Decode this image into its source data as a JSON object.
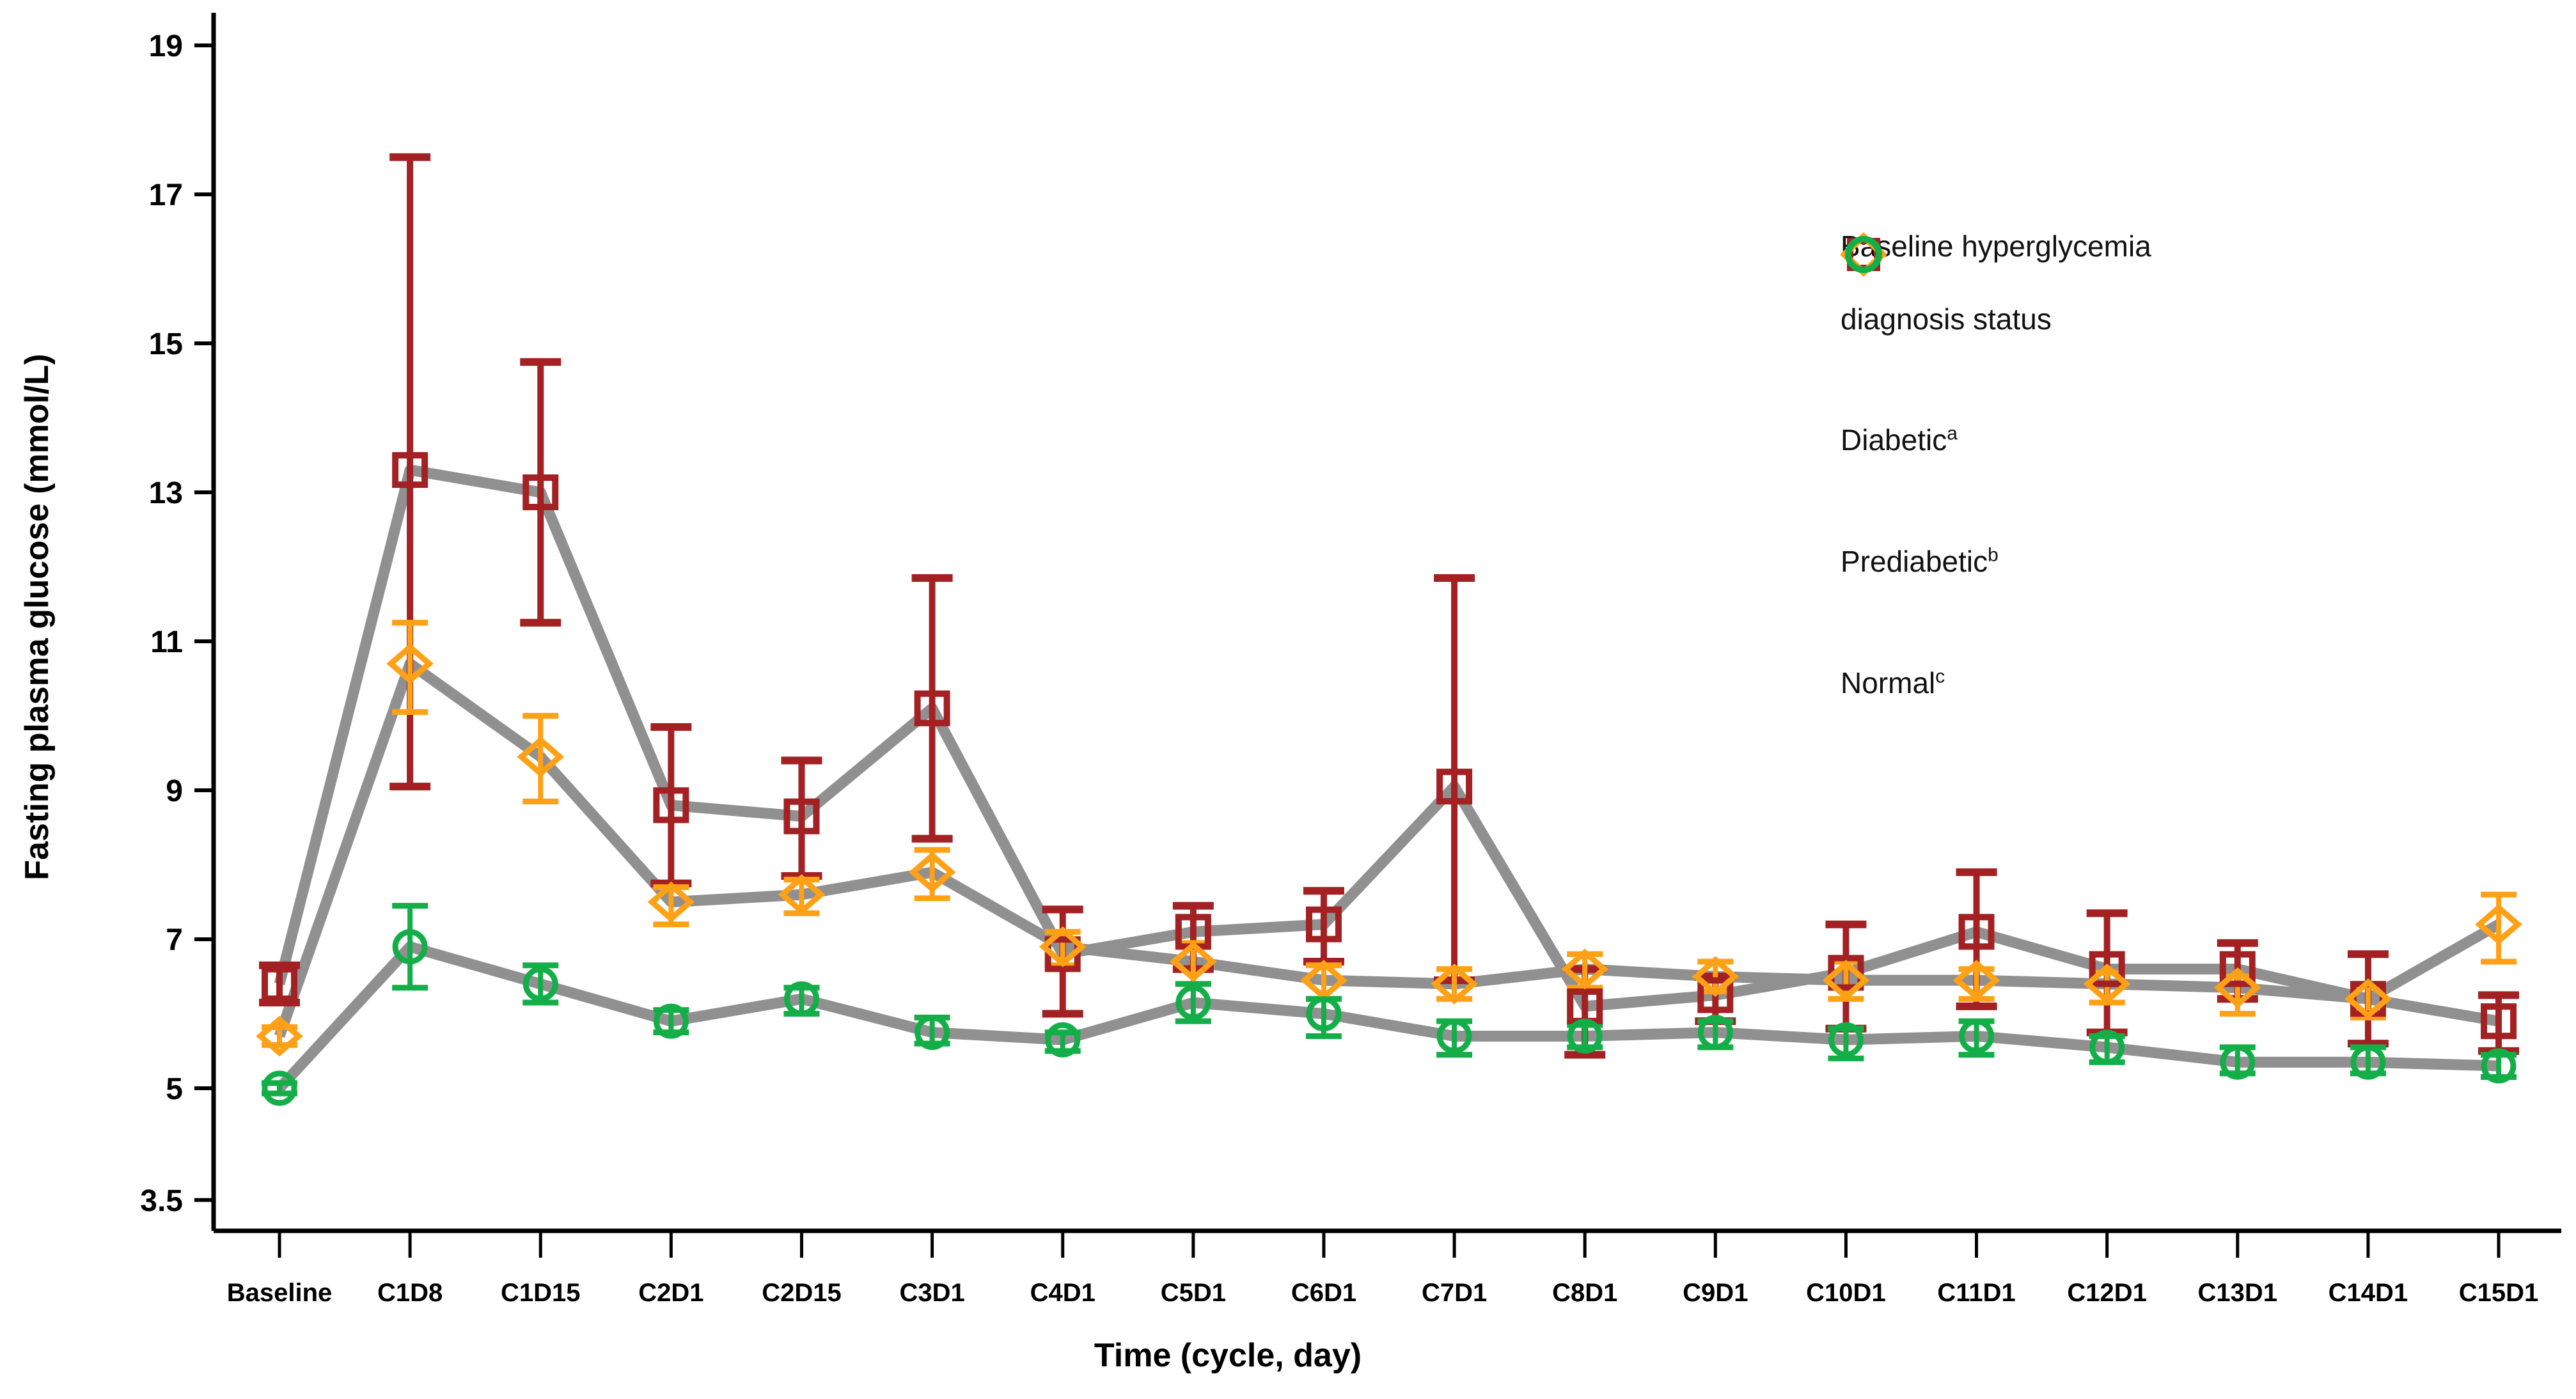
{
  "figure": {
    "background": "#FFFFFF"
  },
  "y_axis": {
    "title": "Fasting plasma glucose (mmol/L)",
    "tick_labels": [
      "19",
      "17",
      "15",
      "13",
      "11",
      "9",
      "7",
      "5",
      "3.5"
    ],
    "tick_values": [
      19,
      17,
      15,
      13,
      11,
      9,
      7,
      5,
      3.5
    ]
  },
  "x_axis": {
    "title": "Time (cycle, day)"
  },
  "legend": {
    "title_line1": "Baseline hyperglycemia",
    "title_line2": "diagnosis status",
    "items": [
      {
        "label": "Diabetic",
        "sup": "a",
        "marker": "square",
        "color": "#A32023"
      },
      {
        "label": "Prediabetic",
        "sup": "b",
        "marker": "diamond",
        "color": "#FFA116"
      },
      {
        "label": "Normal",
        "sup": "c",
        "marker": "circle",
        "color": "#14AE49"
      }
    ]
  },
  "chart_data": {
    "type": "line",
    "title": "",
    "xlabel": "Time (cycle, day)",
    "ylabel": "Fasting plasma glucose (mmol/L)",
    "ylim": [
      3.1,
      19.6
    ],
    "yticks": [
      19,
      17,
      15,
      13,
      11,
      9,
      7,
      5,
      3.5
    ],
    "grid": false,
    "legend_position": "right",
    "line_color": "#909090",
    "categories": [
      "Baseline",
      "C1D8",
      "C1D15",
      "C2D1",
      "C2D15",
      "C3D1",
      "C4D1",
      "C5D1",
      "C6D1",
      "C7D1",
      "C8D1",
      "C9D1",
      "C10D1",
      "C11D1",
      "C12D1",
      "C13D1",
      "C14D1",
      "C15D1"
    ],
    "series": [
      {
        "name": "Diabetic",
        "marker": "square",
        "color": "#A32023",
        "values": [
          6.4,
          13.3,
          13.0,
          8.8,
          8.65,
          10.1,
          6.8,
          7.1,
          7.2,
          9.05,
          6.1,
          6.25,
          6.55,
          7.1,
          6.6,
          6.6,
          6.2,
          5.9
        ],
        "err_lo": [
          6.15,
          9.05,
          11.25,
          7.75,
          7.85,
          8.35,
          6.0,
          6.6,
          6.7,
          6.45,
          5.45,
          5.9,
          5.8,
          6.1,
          5.75,
          6.2,
          5.6,
          5.5
        ],
        "err_hi": [
          6.65,
          17.5,
          14.75,
          9.85,
          9.4,
          11.85,
          7.4,
          7.45,
          7.65,
          11.85,
          6.6,
          6.5,
          7.2,
          7.9,
          7.35,
          6.95,
          6.8,
          6.25
        ]
      },
      {
        "name": "Prediabetic",
        "marker": "diamond",
        "color": "#FFA116",
        "values": [
          5.7,
          10.7,
          9.45,
          7.5,
          7.6,
          7.9,
          6.9,
          6.7,
          6.45,
          6.4,
          6.6,
          6.5,
          6.45,
          6.45,
          6.4,
          6.35,
          6.2,
          7.2
        ],
        "err_lo": [
          5.58,
          10.05,
          8.85,
          7.2,
          7.35,
          7.55,
          6.65,
          6.4,
          6.2,
          6.2,
          6.35,
          6.3,
          6.2,
          6.2,
          6.15,
          6.0,
          5.95,
          6.7
        ],
        "err_hi": [
          5.82,
          11.25,
          10.0,
          7.7,
          7.8,
          8.2,
          7.1,
          6.95,
          6.65,
          6.6,
          6.8,
          6.7,
          6.7,
          6.6,
          6.55,
          6.5,
          6.4,
          7.6
        ]
      },
      {
        "name": "Normal",
        "marker": "circle",
        "color": "#14AE49",
        "values": [
          5.0,
          6.9,
          6.4,
          5.9,
          6.2,
          5.75,
          5.65,
          6.15,
          6.0,
          5.7,
          5.7,
          5.75,
          5.65,
          5.7,
          5.55,
          5.35,
          5.35,
          5.3
        ],
        "err_lo": [
          4.93,
          6.35,
          6.15,
          5.75,
          6.0,
          5.6,
          5.5,
          5.9,
          5.7,
          5.45,
          5.55,
          5.55,
          5.4,
          5.45,
          5.35,
          5.2,
          5.2,
          5.15
        ],
        "err_hi": [
          5.07,
          7.45,
          6.65,
          6.05,
          6.35,
          5.95,
          5.75,
          6.4,
          6.2,
          5.9,
          5.85,
          5.9,
          5.8,
          5.9,
          5.7,
          5.55,
          5.55,
          5.45
        ]
      }
    ]
  }
}
